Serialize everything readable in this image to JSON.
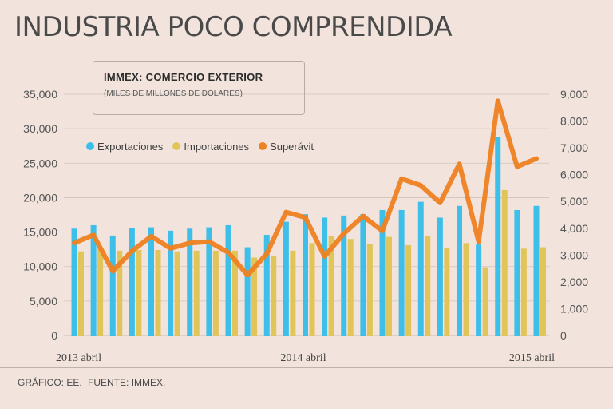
{
  "title": "INDUSTRIA POCO COMPRENDIDA",
  "footer": {
    "grafico": "GRÁFICO: EE.",
    "fuente": "FUENTE: IMMEX."
  },
  "colors": {
    "exportaciones": "#3dbfea",
    "importaciones": "#e1c55a",
    "superavit": "#ee8121",
    "background": "#f2e4dc",
    "grid": "#cfc3bb",
    "text": "#4a4a4a"
  },
  "chart_data": {
    "type": "bar",
    "title": "IMMEX: COMERCIO EXTERIOR",
    "subtitle": "(MILES DE MILLONES DE DÓLARES)",
    "legend": {
      "exportaciones": "Exportaciones",
      "importaciones": "Importaciones",
      "superavit": "Superávit"
    },
    "x_labels": [
      "2013 abril",
      "2014 abril",
      "2015 abril"
    ],
    "categories": [
      "2013-04",
      "2013-05",
      "2013-06",
      "2013-07",
      "2013-08",
      "2013-09",
      "2013-10",
      "2013-11",
      "2013-12",
      "2014-01",
      "2014-02",
      "2014-03",
      "2014-04",
      "2014-05",
      "2014-06",
      "2014-07",
      "2014-08",
      "2014-09",
      "2014-10",
      "2014-11",
      "2014-12",
      "2015-01",
      "2015-02",
      "2015-03",
      "2015-04"
    ],
    "series": [
      {
        "name": "Exportaciones",
        "axis": "left",
        "chart": "bar",
        "values": [
          15500,
          16000,
          14500,
          15600,
          15700,
          15200,
          15500,
          15700,
          16000,
          12800,
          14600,
          16500,
          17600,
          17100,
          17400,
          17600,
          18200,
          18200,
          19400,
          17100,
          18800,
          13200,
          28800,
          18200,
          18800
        ]
      },
      {
        "name": "Importaciones",
        "axis": "left",
        "chart": "bar",
        "values": [
          12200,
          12600,
          12300,
          12400,
          12400,
          12200,
          12300,
          12300,
          12300,
          11300,
          11600,
          12300,
          13400,
          14400,
          14000,
          13300,
          14300,
          13100,
          14500,
          12700,
          13400,
          9900,
          21100,
          12600,
          12800
        ]
      },
      {
        "name": "Superávit",
        "axis": "right",
        "chart": "line",
        "values": [
          3450,
          3750,
          2400,
          3150,
          3700,
          3250,
          3450,
          3500,
          3100,
          2250,
          3050,
          4600,
          4400,
          2950,
          3800,
          4450,
          3900,
          5850,
          5600,
          4950,
          6400,
          3500,
          8750,
          6300,
          6600
        ]
      }
    ],
    "left_axis": {
      "ylim": [
        0,
        35000
      ],
      "ticks": [
        "0",
        "5,000",
        "10,000",
        "15,000",
        "20,000",
        "25,000",
        "30,000",
        "35,000"
      ]
    },
    "right_axis": {
      "ylim": [
        0,
        9000
      ],
      "ticks": [
        "0",
        "1,000",
        "2,000",
        "3,000",
        "4,000",
        "5,000",
        "6,000",
        "7,000",
        "8,000",
        "9,000"
      ]
    },
    "grid": true
  }
}
